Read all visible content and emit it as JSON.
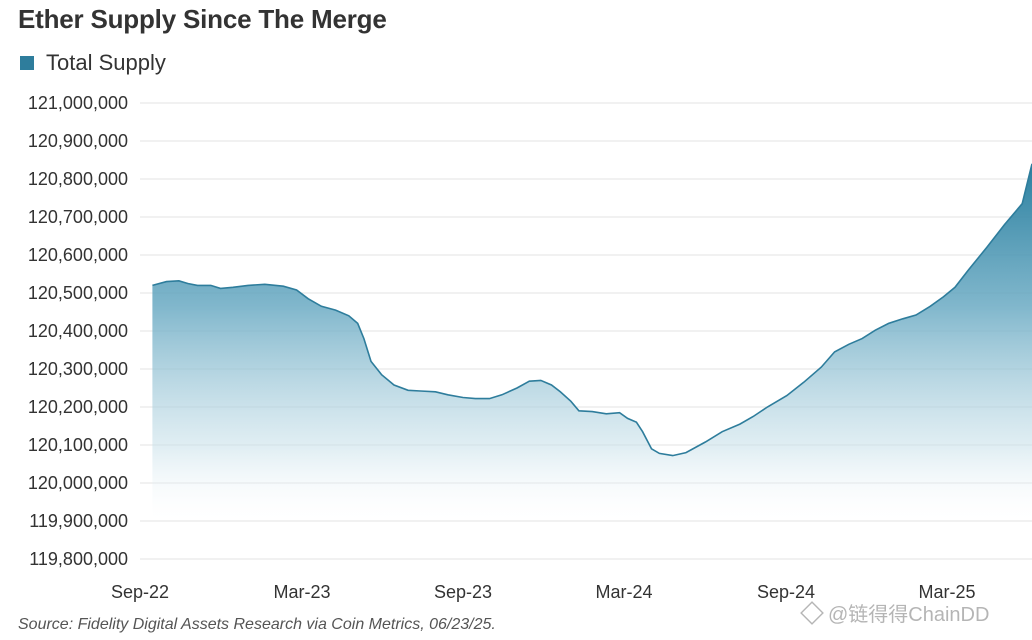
{
  "chart_data": {
    "type": "area",
    "title": "Ether Supply Since The Merge",
    "xlabel": "",
    "ylabel": "",
    "x_tick_labels": [
      "Sep-22",
      "Mar-23",
      "Sep-23",
      "Mar-24",
      "Sep-24",
      "Mar-25"
    ],
    "y_tick_labels": [
      "121,000,000",
      "120,900,000",
      "120,800,000",
      "120,700,000",
      "120,600,000",
      "120,500,000",
      "120,400,000",
      "120,300,000",
      "120,200,000",
      "120,100,000",
      "120,000,000",
      "119,900,000",
      "119,800,000"
    ],
    "ylim": [
      119800000,
      121000000
    ],
    "grid": true,
    "legend_position": "top-left",
    "series": [
      {
        "name": "Total Supply",
        "color": "#2e7d9c",
        "points": [
          [
            "2022-09-15",
            120520000
          ],
          [
            "2022-10-01",
            120530000
          ],
          [
            "2022-10-15",
            120532000
          ],
          [
            "2022-10-25",
            120525000
          ],
          [
            "2022-11-05",
            120520000
          ],
          [
            "2022-11-20",
            120520000
          ],
          [
            "2022-12-01",
            120512000
          ],
          [
            "2022-12-15",
            120515000
          ],
          [
            "2023-01-01",
            120520000
          ],
          [
            "2023-01-20",
            120523000
          ],
          [
            "2023-02-10",
            120518000
          ],
          [
            "2023-02-25",
            120508000
          ],
          [
            "2023-03-10",
            120485000
          ],
          [
            "2023-03-25",
            120465000
          ],
          [
            "2023-04-10",
            120455000
          ],
          [
            "2023-04-25",
            120440000
          ],
          [
            "2023-05-05",
            120420000
          ],
          [
            "2023-05-12",
            120380000
          ],
          [
            "2023-05-20",
            120320000
          ],
          [
            "2023-06-01",
            120285000
          ],
          [
            "2023-06-15",
            120258000
          ],
          [
            "2023-07-01",
            120244000
          ],
          [
            "2023-07-15",
            120242000
          ],
          [
            "2023-08-01",
            120240000
          ],
          [
            "2023-08-15",
            120232000
          ],
          [
            "2023-09-01",
            120225000
          ],
          [
            "2023-09-15",
            120222000
          ],
          [
            "2023-10-01",
            120222000
          ],
          [
            "2023-10-15",
            120232000
          ],
          [
            "2023-11-01",
            120250000
          ],
          [
            "2023-11-15",
            120268000
          ],
          [
            "2023-11-28",
            120270000
          ],
          [
            "2023-12-10",
            120258000
          ],
          [
            "2023-12-20",
            120240000
          ],
          [
            "2024-01-01",
            120215000
          ],
          [
            "2024-01-10",
            120190000
          ],
          [
            "2024-01-25",
            120188000
          ],
          [
            "2024-02-10",
            120182000
          ],
          [
            "2024-02-25",
            120185000
          ],
          [
            "2024-03-05",
            120170000
          ],
          [
            "2024-03-15",
            120160000
          ],
          [
            "2024-03-22",
            120135000
          ],
          [
            "2024-04-01",
            120090000
          ],
          [
            "2024-04-10",
            120078000
          ],
          [
            "2024-04-25",
            120072000
          ],
          [
            "2024-05-10",
            120080000
          ],
          [
            "2024-06-01",
            120108000
          ],
          [
            "2024-06-20",
            120135000
          ],
          [
            "2024-07-10",
            120155000
          ],
          [
            "2024-07-25",
            120175000
          ],
          [
            "2024-08-10",
            120200000
          ],
          [
            "2024-09-01",
            120230000
          ],
          [
            "2024-09-20",
            120265000
          ],
          [
            "2024-10-10",
            120305000
          ],
          [
            "2024-10-25",
            120345000
          ],
          [
            "2024-11-10",
            120365000
          ],
          [
            "2024-11-25",
            120380000
          ],
          [
            "2024-12-10",
            120402000
          ],
          [
            "2024-12-25",
            120420000
          ],
          [
            "2025-01-10",
            120432000
          ],
          [
            "2025-01-25",
            120442000
          ],
          [
            "2025-02-10",
            120465000
          ],
          [
            "2025-02-25",
            120490000
          ],
          [
            "2025-03-10",
            120515000
          ],
          [
            "2025-03-25",
            120560000
          ],
          [
            "2025-04-15",
            120620000
          ],
          [
            "2025-05-05",
            120680000
          ],
          [
            "2025-05-25",
            120735000
          ],
          [
            "2025-06-23",
            120840000
          ]
        ]
      }
    ]
  },
  "legend": {
    "label": "Total Supply",
    "color": "#2e7d9c"
  },
  "source": "Source: Fidelity Digital Assets Research via Coin Metrics, 06/23/25.",
  "watermark": "@链得得ChainDD"
}
